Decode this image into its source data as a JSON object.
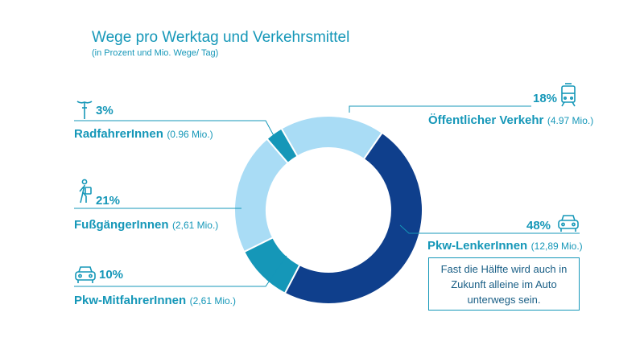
{
  "title": "Wege pro Werktag und Verkehrsmittel",
  "subtitle": "(in Prozent und Mio. Wege/ Tag)",
  "colors": {
    "dark": "#0f3f8c",
    "mid": "#1597b8",
    "light": "#a9dcf5",
    "text": "#1597b8"
  },
  "chart_data": {
    "type": "pie",
    "title": "Wege pro Werktag und Verkehrsmittel",
    "subtitle": "(in Prozent und Mio. Wege/ Tag)",
    "slices": [
      {
        "label": "Öffentlicher Verkehr",
        "percent_label": "18%",
        "value": 18,
        "detail": "(4.97 Mio.)",
        "millions": 4.97,
        "color": "#a9dcf5",
        "icon": "tram-icon"
      },
      {
        "label": "Pkw-LenkerInnen",
        "percent_label": "48%",
        "value": 48,
        "detail": "(12,89 Mio.)",
        "millions": 12.89,
        "color": "#0f3f8c",
        "icon": "car-icon"
      },
      {
        "label": "Pkw-MitfahrerInnen",
        "percent_label": "10%",
        "value": 10,
        "detail": "(2,61 Mio.)",
        "millions": 2.61,
        "color": "#1597b8",
        "icon": "car-icon"
      },
      {
        "label": "FußgängerInnen",
        "percent_label": "21%",
        "value": 21,
        "detail": "(2,61 Mio.)",
        "millions": 2.61,
        "color": "#a9dcf5",
        "icon": "pedestrian-icon"
      },
      {
        "label": "RadfahrerInnen",
        "percent_label": "3%",
        "value": 3,
        "detail": "(0.96 Mio.)",
        "millions": 0.96,
        "color": "#1597b8",
        "icon": "bicycle-icon"
      }
    ]
  },
  "note": "Fast die Hälfte wird auch in Zukunft alleine im Auto unterwegs sein."
}
